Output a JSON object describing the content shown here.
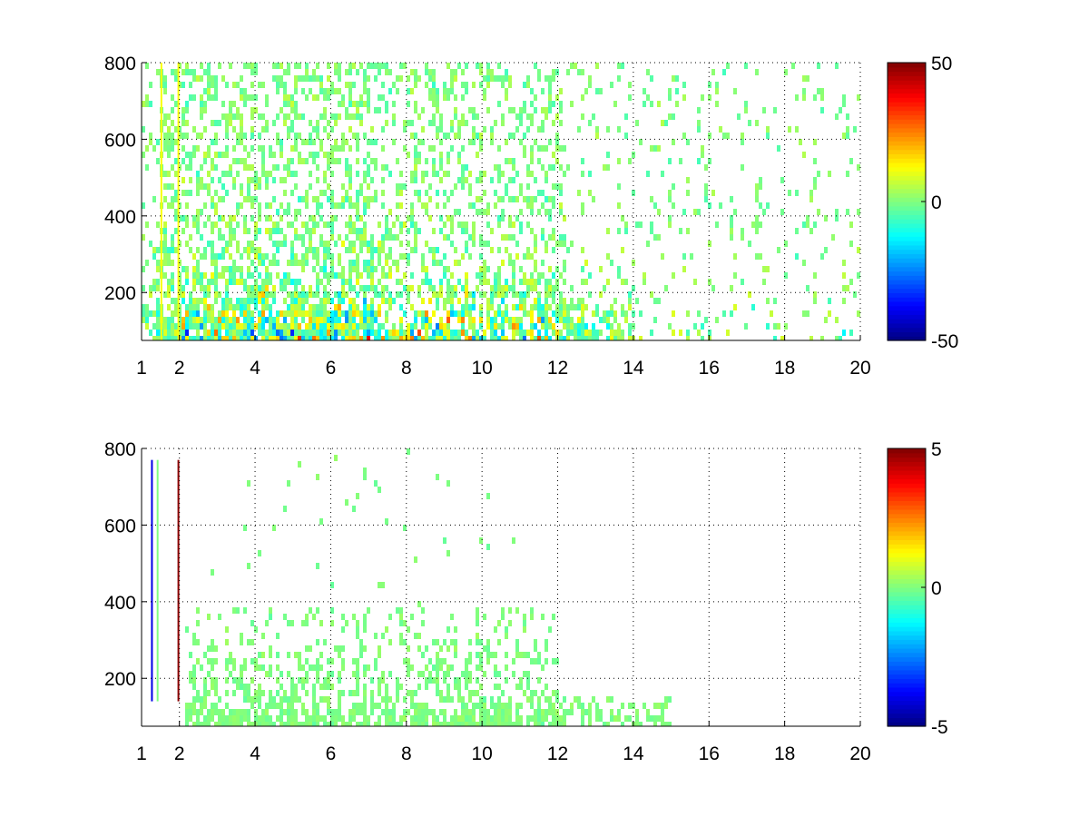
{
  "chart_data": [
    {
      "type": "heatmap",
      "title": "",
      "xlabel": "",
      "ylabel": "",
      "xlim": [
        1,
        20
      ],
      "ylim": [
        75,
        800
      ],
      "xticks": [
        1,
        2,
        4,
        6,
        8,
        10,
        12,
        14,
        16,
        18,
        20
      ],
      "yticks": [
        200,
        400,
        600,
        800
      ],
      "grid": true,
      "grid_style": "dotted",
      "colormap": "jet",
      "colorbar": {
        "min": -50,
        "max": 50,
        "ticks": [
          50,
          0,
          -50
        ],
        "placement": "right"
      },
      "notes": "dense sparse field; strongest values near y=75-200 for x in 2-12, with dominant blues and reds; scattered green/yellow cells up to y=800 across the whole x range"
    },
    {
      "type": "heatmap",
      "title": "",
      "xlabel": "",
      "ylabel": "",
      "xlim": [
        1,
        20
      ],
      "ylim": [
        75,
        800
      ],
      "xticks": [
        1,
        2,
        4,
        6,
        8,
        10,
        12,
        14,
        16,
        18,
        20
      ],
      "yticks": [
        200,
        400,
        600,
        800
      ],
      "grid": true,
      "grid_style": "dotted",
      "colormap": "jet",
      "colorbar": {
        "min": -5,
        "max": 5,
        "ticks": [
          5,
          0,
          -5
        ],
        "placement": "right"
      },
      "notes": "mostly near-zero (light green) cells below y=400 for x in 2-15; thin coloured vertical streaks near x=1.3-2"
    }
  ]
}
